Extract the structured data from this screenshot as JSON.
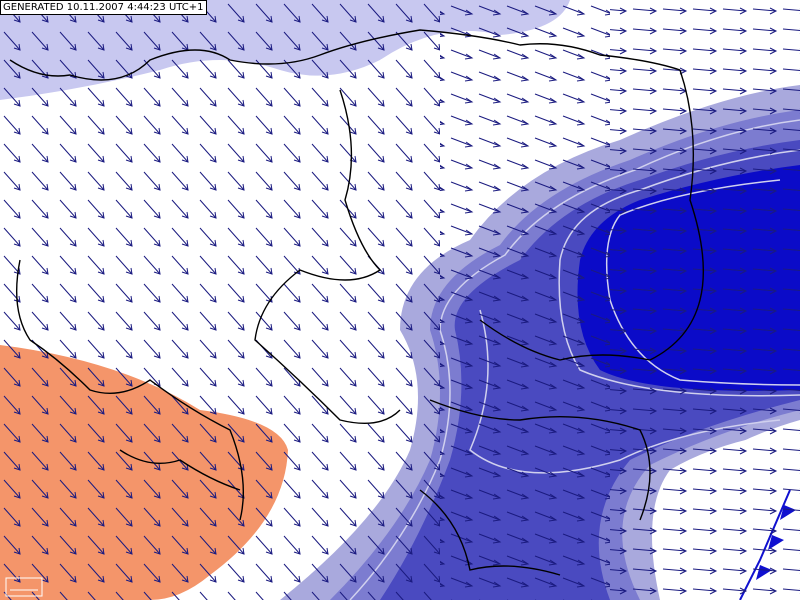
{
  "header": {
    "generated": "GENERATED 10.11.2007 4:44:23 UTC+1"
  }
}
